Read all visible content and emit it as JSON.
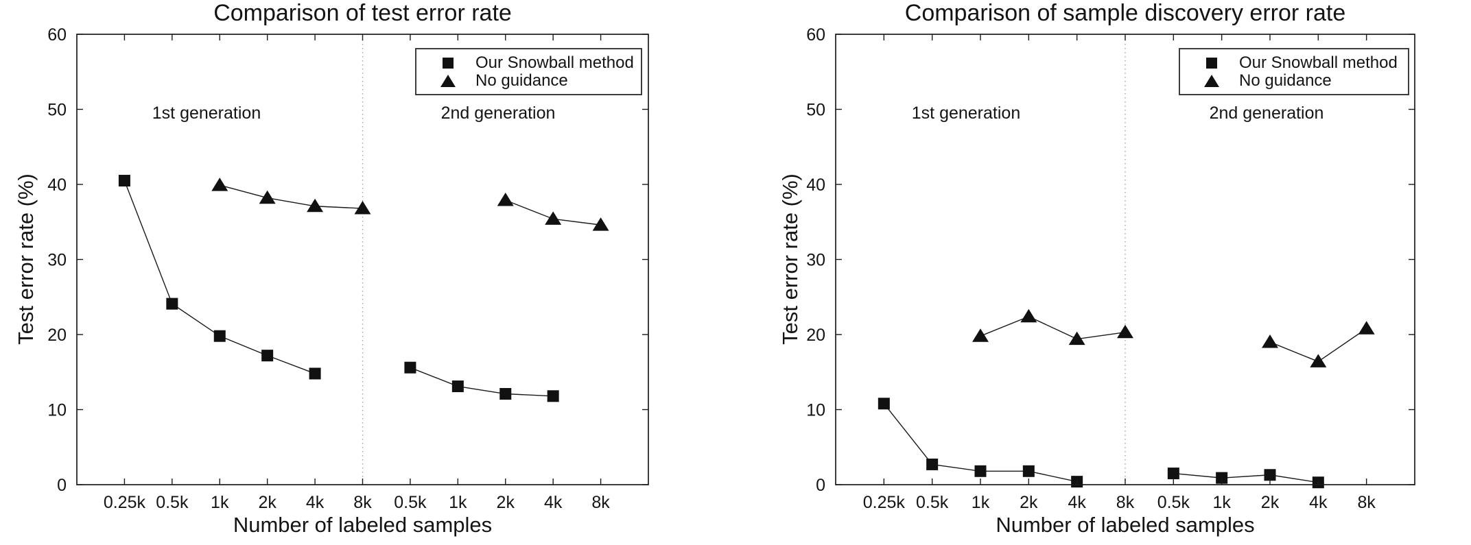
{
  "figure": {
    "background_color": "#ffffff",
    "axis_color": "#1a1a1a",
    "text_color": "#141414"
  },
  "chart_data": [
    {
      "type": "line",
      "title": "Comparison of test error rate",
      "xlabel": "Number of labeled samples",
      "ylabel": "Test error rate (%)",
      "ylim": [
        0,
        60
      ],
      "y_ticks": [
        0,
        10,
        20,
        30,
        40,
        50,
        60
      ],
      "categories": [
        "0.25k",
        "0.5k",
        "1k",
        "2k",
        "4k",
        "8k",
        "0.5k",
        "1k",
        "2k",
        "4k",
        "8k"
      ],
      "grid": false,
      "separator_after_index": 5,
      "separator_style": "dotted",
      "annotations": [
        {
          "text": "1st generation"
        },
        {
          "text": "2nd generation"
        }
      ],
      "legend": {
        "position": "top-right",
        "entries": [
          {
            "label": "Our Snowball method",
            "marker": "square"
          },
          {
            "label": "No guidance",
            "marker": "triangle"
          }
        ]
      },
      "series": [
        {
          "name": "Our Snowball method",
          "marker": "square",
          "generation": "1st",
          "x_indices": [
            0,
            1,
            2,
            3,
            4
          ],
          "values": [
            40.5,
            24.1,
            19.8,
            17.2,
            14.8
          ]
        },
        {
          "name": "Our Snowball method",
          "marker": "square",
          "generation": "2nd",
          "x_indices": [
            6,
            7,
            8,
            9
          ],
          "values": [
            15.6,
            13.1,
            12.1,
            11.8
          ]
        },
        {
          "name": "No guidance",
          "marker": "triangle",
          "generation": "1st",
          "x_indices": [
            2,
            3,
            4,
            5
          ],
          "values": [
            39.9,
            38.2,
            37.1,
            36.8
          ]
        },
        {
          "name": "No guidance",
          "marker": "triangle",
          "generation": "2nd",
          "x_indices": [
            8,
            9,
            10
          ],
          "values": [
            37.9,
            35.4,
            34.6
          ]
        }
      ],
      "colors": {
        "line": "#1a1a1a",
        "marker": "#111111",
        "separator": "#9a9a9a"
      }
    },
    {
      "type": "line",
      "title": "Comparison of sample discovery error rate",
      "xlabel": "Number of labeled samples",
      "ylabel": "Test error rate (%)",
      "ylim": [
        0,
        60
      ],
      "y_ticks": [
        0,
        10,
        20,
        30,
        40,
        50,
        60
      ],
      "categories": [
        "0.25k",
        "0.5k",
        "1k",
        "2k",
        "4k",
        "8k",
        "0.5k",
        "1k",
        "2k",
        "4k",
        "8k"
      ],
      "grid": false,
      "separator_after_index": 5,
      "separator_style": "dotted",
      "annotations": [
        {
          "text": "1st generation"
        },
        {
          "text": "2nd generation"
        }
      ],
      "legend": {
        "position": "top-right",
        "entries": [
          {
            "label": "Our Snowball method",
            "marker": "square"
          },
          {
            "label": "No guidance",
            "marker": "triangle"
          }
        ]
      },
      "series": [
        {
          "name": "Our Snowball method",
          "marker": "square",
          "generation": "1st",
          "x_indices": [
            0,
            1,
            2,
            3,
            4
          ],
          "values": [
            10.8,
            2.7,
            1.8,
            1.8,
            0.4
          ]
        },
        {
          "name": "Our Snowball method",
          "marker": "square",
          "generation": "2nd",
          "x_indices": [
            6,
            7,
            8,
            9
          ],
          "values": [
            1.5,
            0.9,
            1.3,
            0.3
          ]
        },
        {
          "name": "No guidance",
          "marker": "triangle",
          "generation": "1st",
          "x_indices": [
            2,
            3,
            4,
            5
          ],
          "values": [
            19.8,
            22.4,
            19.4,
            20.3
          ]
        },
        {
          "name": "No guidance",
          "marker": "triangle",
          "generation": "2nd",
          "x_indices": [
            8,
            9,
            10
          ],
          "values": [
            19.0,
            16.4,
            20.8
          ]
        }
      ],
      "colors": {
        "line": "#1a1a1a",
        "marker": "#111111",
        "separator": "#9a9a9a"
      }
    }
  ]
}
